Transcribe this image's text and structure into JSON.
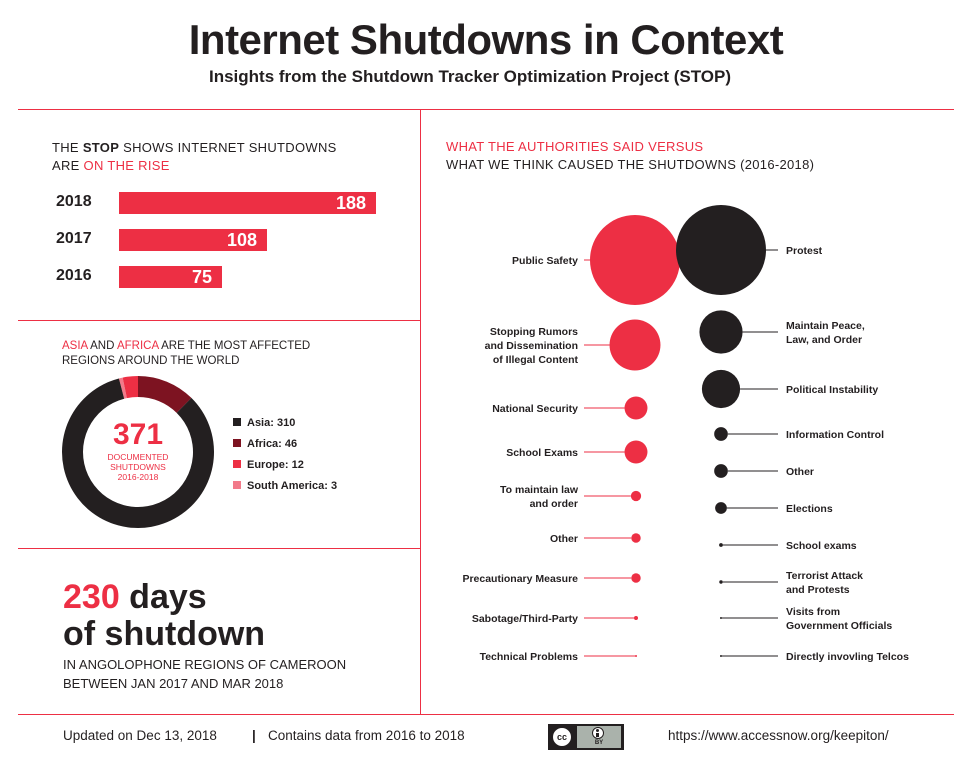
{
  "header": {
    "title": "Internet Shutdowns in Context",
    "subtitle": "Insights from the Shutdown Tracker Optimization Project (STOP)"
  },
  "rise": {
    "heading_pre": "THE ",
    "heading_bold": "STOP",
    "heading_post": " SHOWS INTERNET SHUTDOWNS",
    "heading_line2_pre": "ARE ",
    "heading_line2_red": "ON THE RISE"
  },
  "regions": {
    "heading_red1": "ASIA",
    "heading_mid1": " AND ",
    "heading_red2": "AFRICA",
    "heading_post": " ARE THE MOST AFFECTED",
    "heading_line2": "REGIONS AROUND THE WORLD",
    "total": "371",
    "total_label_1": "DOCUMENTED",
    "total_label_2": "SHUTDOWNS",
    "total_label_3": "2016-2018"
  },
  "cameroon": {
    "days_number": "230",
    "days_word": " days",
    "line2": "of shutdown",
    "desc1": "IN ANGOLOPHONE REGIONS OF CAMEROON",
    "desc2": "BETWEEN JAN 2017 AND MAR 2018"
  },
  "causes": {
    "heading1": "WHAT THE AUTHORITIES SAID VERSUS",
    "heading2": "WHAT WE THINK CAUSED THE SHUTDOWNS (2016-2018)"
  },
  "footer": {
    "updated": "Updated on Dec 13, 2018",
    "separator": "|",
    "contains": "Contains data from 2016 to 2018",
    "cc_label": "cc",
    "by_label": "BY",
    "url": "https://www.accessnow.org/keepiton/"
  },
  "colors": {
    "red": "#ed2f44",
    "dark": "#231f20",
    "darkred": "#7d1321",
    "pink": "#f27a8a"
  },
  "chart_data": [
    {
      "type": "bar",
      "categories": [
        "2018",
        "2017",
        "2016"
      ],
      "values": [
        188,
        108,
        75
      ],
      "xlim": [
        0,
        188
      ]
    },
    {
      "type": "pie",
      "series": [
        {
          "name": "Asia",
          "value": 310,
          "label": "Asia: 310",
          "color": "#231f20"
        },
        {
          "name": "Africa",
          "value": 46,
          "label": "Africa: 46",
          "color": "#7d1321"
        },
        {
          "name": "Europe",
          "value": 12,
          "label": "Europe: 12",
          "color": "#ed2f44"
        },
        {
          "name": "South America",
          "value": 3,
          "label": "South America: 3",
          "color": "#f27a8a"
        }
      ]
    },
    {
      "type": "bubble",
      "said": [
        "Public Safety",
        "Stopping Rumors and Dissemination of Illegal Content",
        "National Security",
        "School Exams",
        "To maintain law and order",
        "Other",
        "Precautionary Measure",
        "Sabotage/Third-Party",
        "Technical Problems"
      ],
      "said_labels": [
        [
          "Public Safety"
        ],
        [
          "Stopping Rumors",
          "and Dissemination",
          "of Illegal Content"
        ],
        [
          "National Security"
        ],
        [
          "School Exams"
        ],
        [
          "To maintain law",
          "and order"
        ],
        [
          "Other"
        ],
        [
          "Precautionary Measure"
        ],
        [
          "Sabotage/Third-Party"
        ],
        [
          "Technical Problems"
        ]
      ],
      "said_sizes": [
        100,
        32,
        6.5,
        6.5,
        1.3,
        1.1,
        1.1,
        0.2,
        0.05
      ],
      "think": [
        "Protest",
        "Maintain Peace, Law, and Order",
        "Political Instability",
        "Information Control",
        "Other",
        "Elections",
        "School exams",
        "Terrorist Attack and Protests",
        "Visits from Government Officials",
        "Directly invovling Telcos"
      ],
      "think_labels": [
        [
          "Protest"
        ],
        [
          "Maintain Peace,",
          "Law, and Order"
        ],
        [
          "Political Instability"
        ],
        [
          "Information Control"
        ],
        [
          "Other"
        ],
        [
          "Elections"
        ],
        [
          "School exams"
        ],
        [
          "Terrorist Attack",
          "and Protests"
        ],
        [
          "Visits from",
          "Government Officials"
        ],
        [
          "Directly invovling Telcos"
        ]
      ],
      "think_sizes": [
        100,
        23,
        18,
        2.3,
        2.3,
        1.7,
        0.18,
        0.15,
        0.02,
        0.02
      ]
    }
  ]
}
